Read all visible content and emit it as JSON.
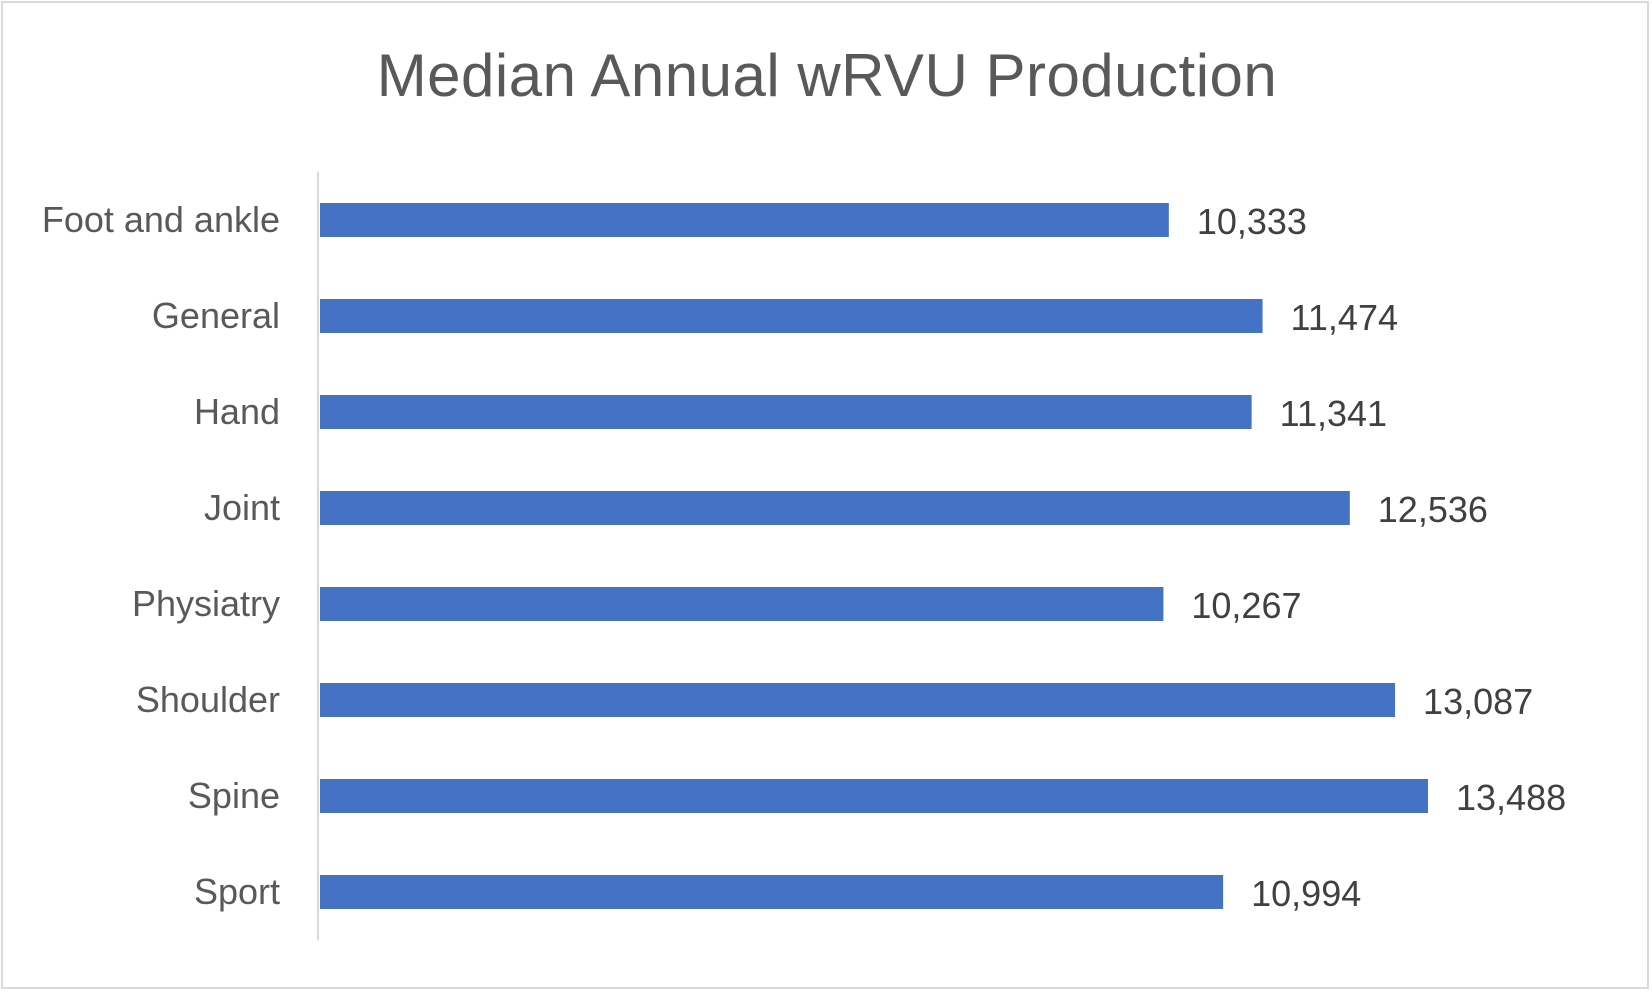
{
  "chart_data": {
    "type": "bar",
    "orientation": "horizontal",
    "title": "Median Annual wRVU Production",
    "xlabel": "",
    "ylabel": "",
    "categories": [
      "Foot and ankle",
      "General",
      "Hand",
      "Joint",
      "Physiatry",
      "Shoulder",
      "Spine",
      "Sport"
    ],
    "values": [
      10333,
      11474,
      11341,
      12536,
      10267,
      13087,
      13488,
      10994
    ],
    "data_labels": [
      "10,333",
      "11,474",
      "11,341",
      "12,536",
      "10,267",
      "13,087",
      "13,488",
      "10,994"
    ],
    "xlim": [
      0,
      16000
    ],
    "grid": false,
    "legend": "none",
    "bar_color": "#4472C4"
  }
}
